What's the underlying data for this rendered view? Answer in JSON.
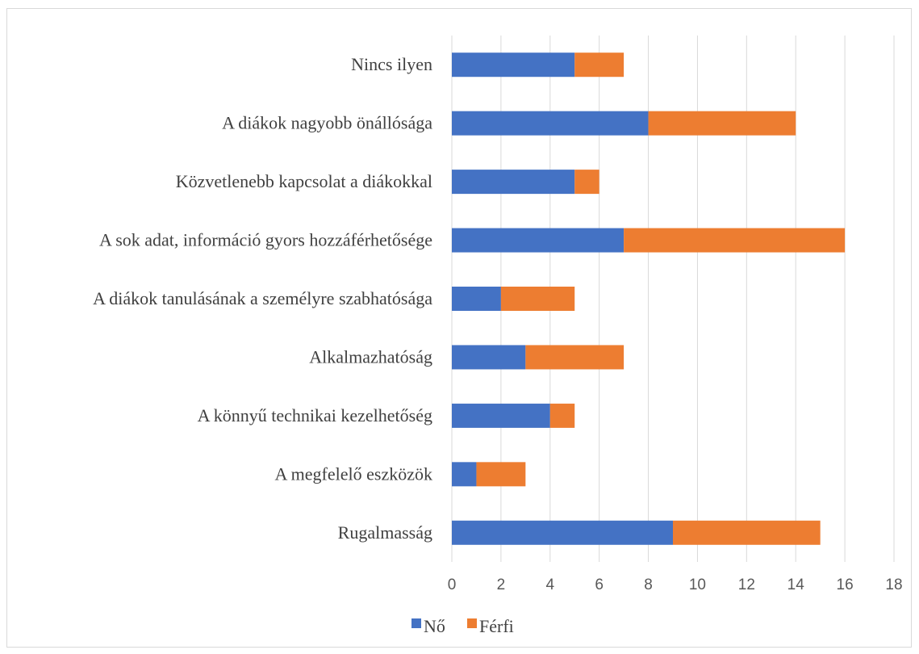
{
  "chart_data": {
    "type": "bar",
    "orientation": "horizontal",
    "stacked": true,
    "categories": [
      "Nincs ilyen",
      "A diákok nagyobb önállósága",
      "Közvetlenebb kapcsolat a diákokkal",
      "A sok adat, információ gyors hozzáférhetősége",
      "A diákok tanulásának a személyre szabhatósága",
      "Alkalmazhatóság",
      "A könnyű technikai kezelhetőség",
      "A megfelelő eszközök",
      "Rugalmasság"
    ],
    "series": [
      {
        "name": "Nő",
        "color": "#4472c4",
        "values": [
          5,
          8,
          5,
          7,
          2,
          3,
          4,
          1,
          9
        ]
      },
      {
        "name": "Férfi",
        "color": "#ed7d31",
        "values": [
          2,
          6,
          1,
          9,
          3,
          4,
          1,
          2,
          6
        ]
      }
    ],
    "xlim": [
      0,
      18
    ],
    "xticks": [
      "0",
      "2",
      "4",
      "6",
      "8",
      "10",
      "12",
      "14",
      "16",
      "18"
    ],
    "grid": true,
    "legend_position": "bottom",
    "title": "",
    "xlabel": "",
    "ylabel": ""
  }
}
